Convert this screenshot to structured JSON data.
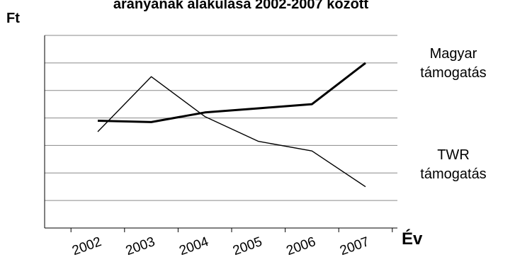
{
  "chart_data": {
    "type": "line",
    "title": "arányának alakulása 2002-2007 között",
    "ylabel": "Ft",
    "xlabel": "Év",
    "categories": [
      "2002",
      "2003",
      "2004",
      "2005",
      "2006",
      "2007"
    ],
    "ylim": [
      0,
      7
    ],
    "grid": true,
    "series": [
      {
        "name_lines": [
          "Magyar",
          "támogatás"
        ],
        "stroke_color": "#000000",
        "line_weight": "thick",
        "values": [
          3.9,
          3.85,
          4.2,
          4.35,
          4.5,
          6.0
        ]
      },
      {
        "name_lines": [
          "TWR",
          "támogatás"
        ],
        "stroke_color": "#000000",
        "line_weight": "thin",
        "values": [
          3.5,
          5.5,
          4.05,
          3.15,
          2.8,
          1.5
        ]
      }
    ]
  }
}
